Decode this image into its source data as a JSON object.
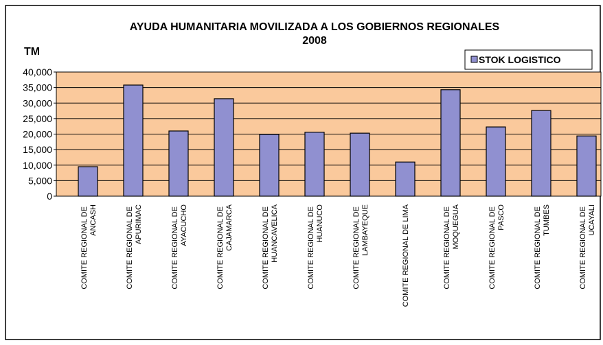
{
  "chart_data": {
    "type": "bar",
    "title": [
      "AYUDA HUMANITARIA MOVILIZADA A LOS GOBIERNOS REGIONALES",
      "2008"
    ],
    "y_label": "TM",
    "categories": [
      "COMITE REGIONAL DE ANCASH",
      "COMITE REGIONAL DE APURIMAC",
      "COMITE REGIONAL DE AYACUCHO",
      "COMITE REGIONAL DE CAJAMARCA",
      "COMITE REGIONAL DE HUANCAVELICA",
      "COMITE REGIONAL DE HUANUCO",
      "COMITE REGIONAL DE LAMBAYEQUE",
      "COMITE REGIONAL DE LIMA",
      "COMITE REGIONAL DE MOQUEGUA",
      "COMITE REGIONAL DE PASCO",
      "COMITE REGIONAL DE TUMBES",
      "COMITE REGIONAL DE UCAYALI"
    ],
    "series": [
      {
        "name": "STOK LOGISTICO",
        "color": "#9090d0",
        "values": [
          9500,
          35800,
          21000,
          31400,
          19900,
          20600,
          20300,
          11000,
          34300,
          22300,
          27600,
          19400
        ]
      }
    ],
    "ylim": [
      0,
      40000
    ],
    "yticks": [
      0,
      {
        "value": 5000,
        "label": "5,000"
      },
      {
        "value": 10000,
        "label": "10,000"
      },
      {
        "value": 15000,
        "label": "15,000"
      },
      {
        "value": 20000,
        "label": "20,000"
      },
      {
        "value": 25000,
        "label": "25,000"
      },
      {
        "value": 30000,
        "label": "30,000"
      },
      {
        "value": 35000,
        "label": "35,000"
      },
      {
        "value": 40000,
        "label": "40,000"
      }
    ],
    "grid": true,
    "legend": "top-right",
    "plot_color": "#fac99c"
  }
}
